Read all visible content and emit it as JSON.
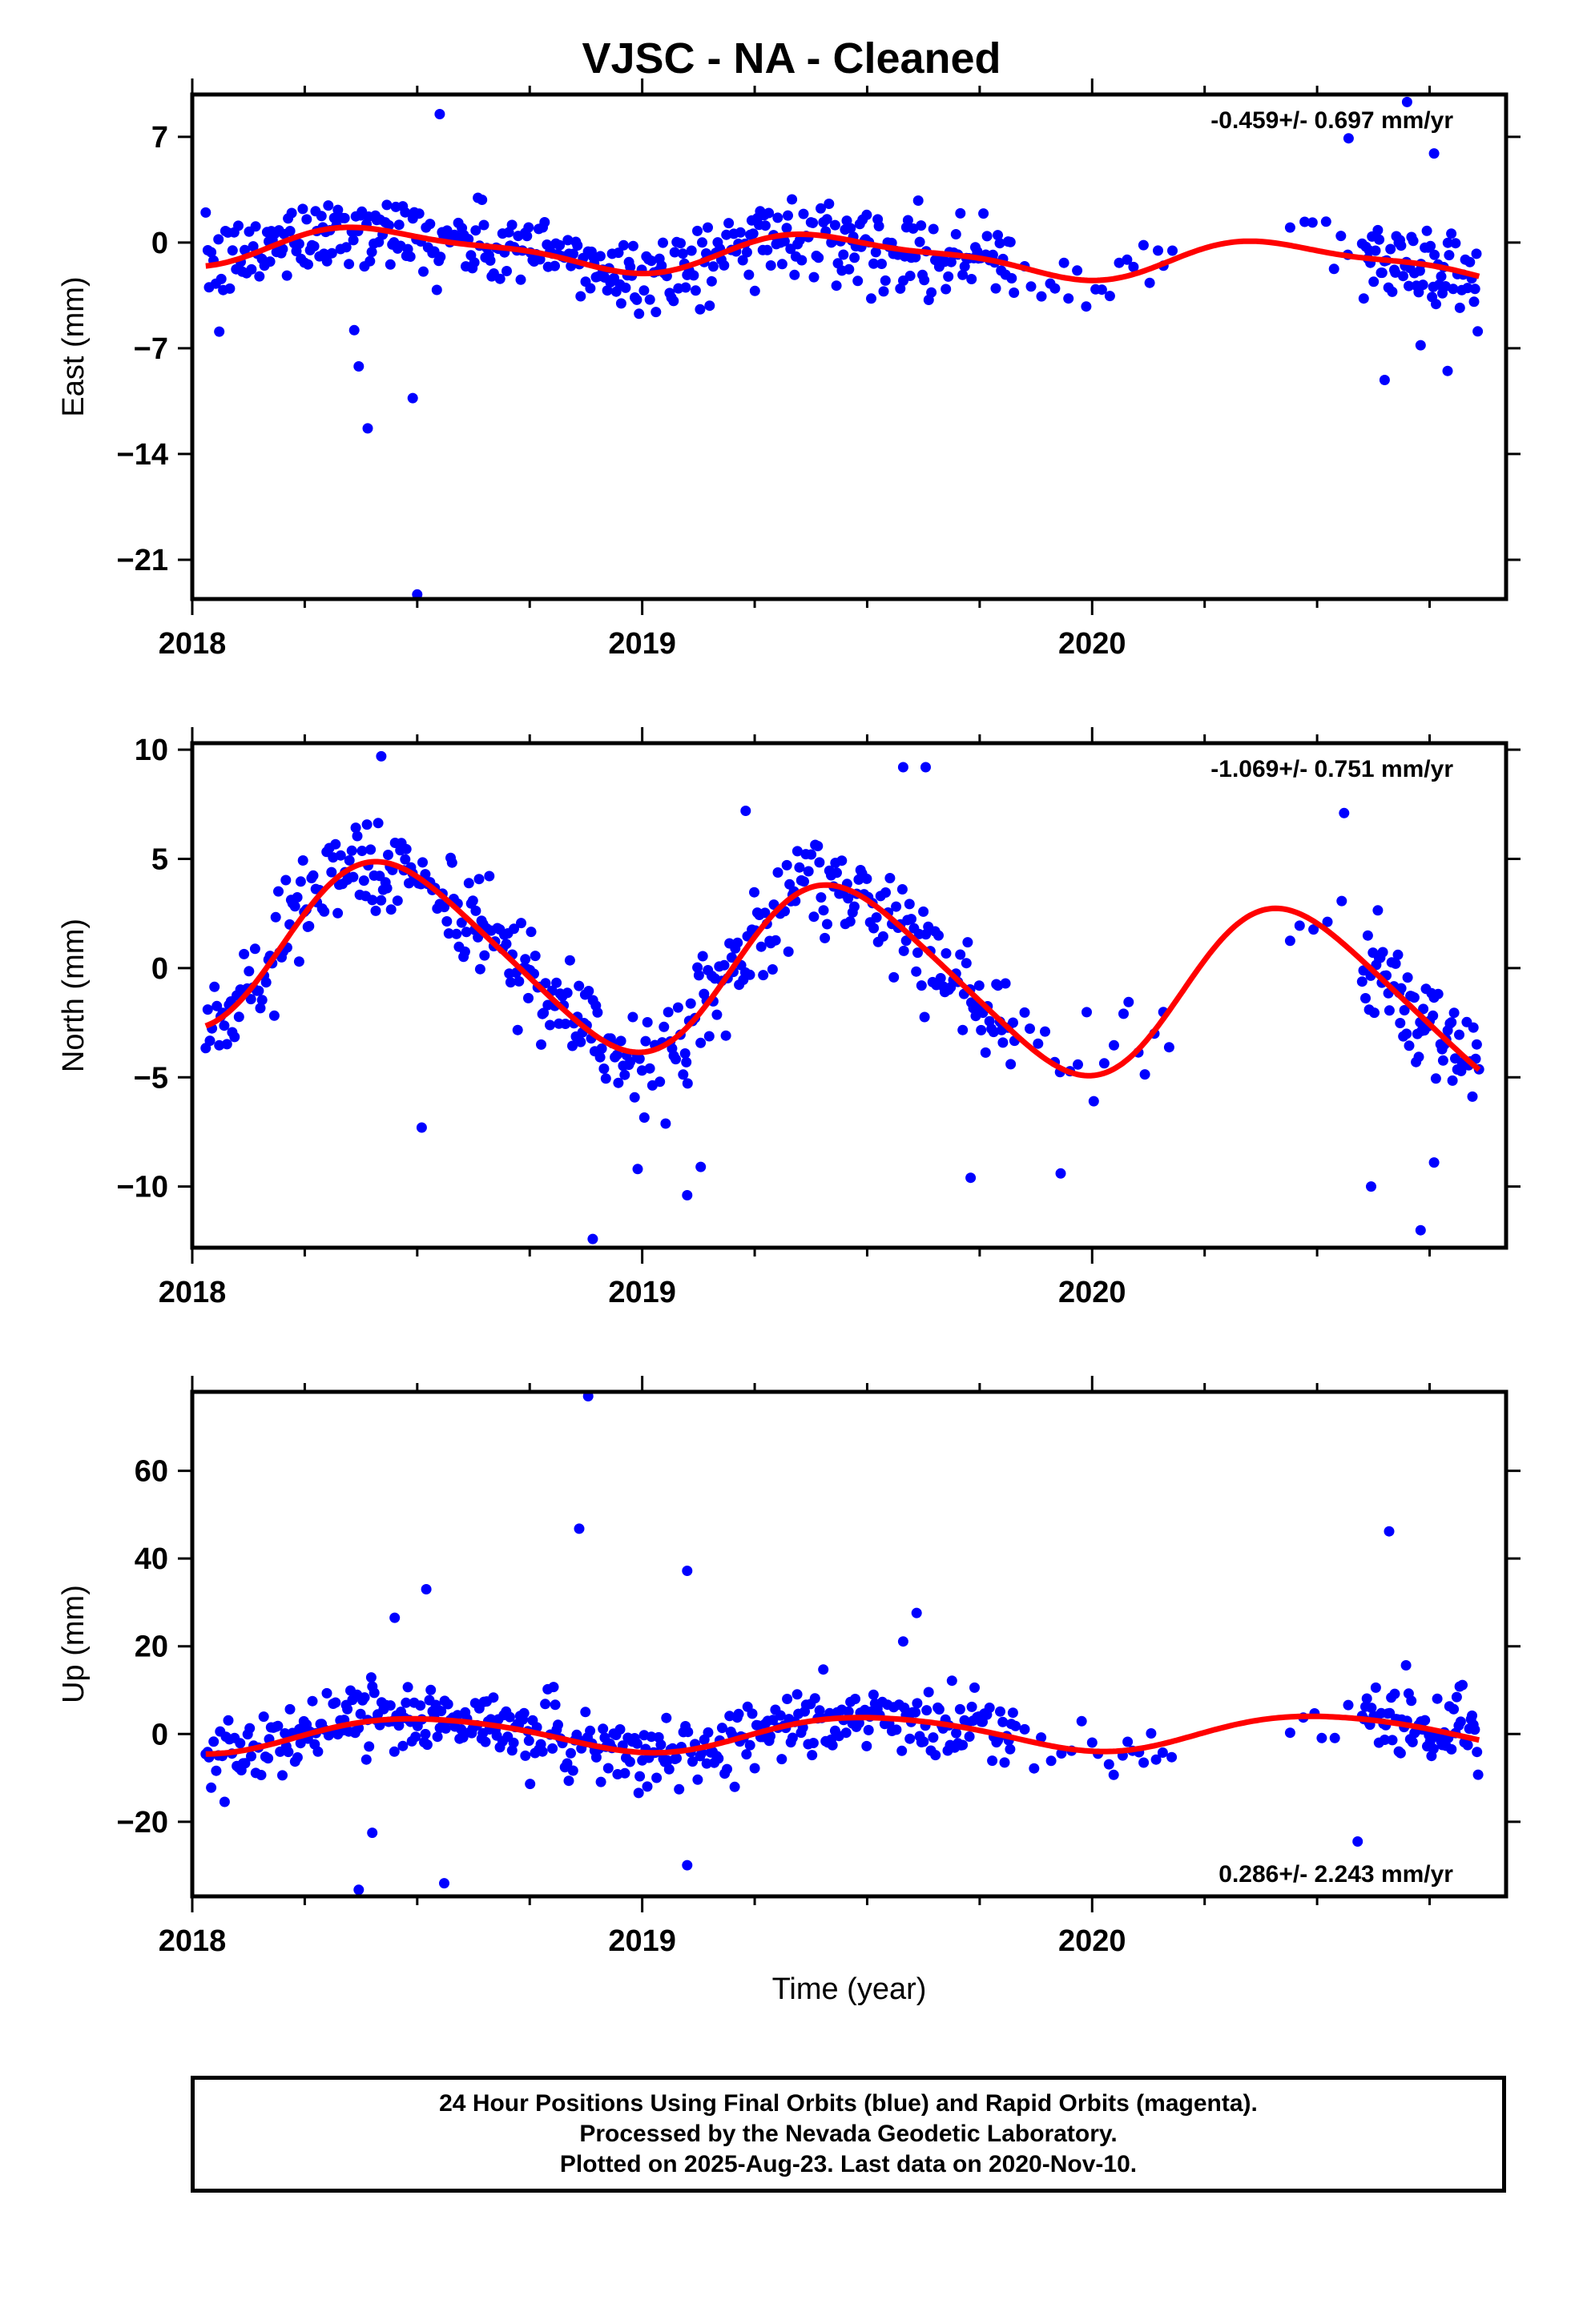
{
  "title": "VJSC  - NA - Cleaned",
  "footer": {
    "line1": "24 Hour Positions Using Final Orbits (blue) and Rapid Orbits (magenta).",
    "line2": "Processed by the Nevada Geodetic Laboratory.",
    "line3": "Plotted on 2025-Aug-23. Last data on 2020-Nov-10."
  },
  "colors": {
    "points": "#0000ff",
    "fit": "#ff0000",
    "frame": "#000000"
  },
  "chart_data": [
    {
      "type": "scatter",
      "name": "east",
      "ylabel": "East (mm)",
      "xlabel": "",
      "xlim": [
        2018.0,
        2020.92
      ],
      "ylim": [
        -23.6,
        9.8
      ],
      "xticks": [
        2018,
        2019,
        2020
      ],
      "yticks": [
        7,
        0,
        -7,
        -14,
        -21
      ],
      "rate": "-0.459+/- 0.697 mm/yr",
      "rate_position": "top-right",
      "model": {
        "offset": -0.6,
        "trend": -0.459,
        "s1": 0.45,
        "c1": -1.1,
        "s2": -0.2,
        "c2": -0.35
      },
      "noise": 1.7,
      "outliers": [
        [
          2018.37,
          -8.2
        ],
        [
          2018.39,
          -12.3
        ],
        [
          2018.49,
          -10.3
        ],
        [
          2018.5,
          -23.3
        ],
        [
          2018.06,
          -5.9
        ],
        [
          2018.36,
          -5.8
        ],
        [
          2020.65,
          -9.1
        ],
        [
          2020.73,
          -6.8
        ],
        [
          2020.79,
          -8.5
        ],
        [
          2018.55,
          8.5
        ],
        [
          2020.7,
          9.3
        ],
        [
          2020.57,
          6.9
        ],
        [
          2020.76,
          5.9
        ]
      ]
    },
    {
      "type": "scatter",
      "name": "north",
      "ylabel": "North (mm)",
      "xlabel": "",
      "xlim": [
        2018.0,
        2020.92
      ],
      "ylim": [
        -12.8,
        10.3
      ],
      "xticks": [
        2018,
        2019,
        2020
      ],
      "yticks": [
        10,
        5,
        0,
        -5,
        -10
      ],
      "rate": "-1.069+/- 0.751 mm/yr",
      "rate_position": "top-right",
      "model": {
        "offset": 0.2,
        "trend": -1.069,
        "s1": 1.2,
        "c1": -3.75,
        "s2": -0.4,
        "c2": -0.3
      },
      "noise": 1.5,
      "outliers": [
        [
          2018.42,
          9.7
        ],
        [
          2018.51,
          -7.3
        ],
        [
          2018.89,
          -12.4
        ],
        [
          2019.1,
          -10.4
        ],
        [
          2018.99,
          -9.2
        ],
        [
          2019.13,
          -9.1
        ],
        [
          2019.73,
          -9.6
        ],
        [
          2019.93,
          -9.4
        ],
        [
          2020.62,
          -10.0
        ],
        [
          2020.73,
          -12.0
        ],
        [
          2020.76,
          -8.9
        ],
        [
          2019.58,
          9.2
        ],
        [
          2019.63,
          9.2
        ],
        [
          2020.56,
          7.1
        ],
        [
          2019.23,
          7.2
        ]
      ]
    },
    {
      "type": "scatter",
      "name": "up",
      "ylabel": "Up (mm)",
      "xlabel": "Time (year)",
      "xlim": [
        2018.0,
        2020.92
      ],
      "ylim": [
        -37.0,
        78.0
      ],
      "xticks": [
        2018,
        2019,
        2020
      ],
      "yticks": [
        60,
        40,
        20,
        0,
        -20
      ],
      "rate": "0.286+/- 2.243 mm/yr",
      "rate_position": "bottom-right",
      "model": {
        "offset": 0.0,
        "trend": 0.286,
        "s1": -0.3,
        "c1": -3.9,
        "s2": -0.3,
        "c2": -0.3
      },
      "noise": 5.5,
      "outliers": [
        [
          2018.88,
          77.0
        ],
        [
          2018.86,
          46.8
        ],
        [
          2020.66,
          46.2
        ],
        [
          2019.1,
          37.2
        ],
        [
          2018.52,
          33.0
        ],
        [
          2018.45,
          26.5
        ],
        [
          2019.61,
          27.6
        ],
        [
          2018.37,
          -35.5
        ],
        [
          2018.56,
          -34.0
        ],
        [
          2019.1,
          -29.9
        ],
        [
          2018.4,
          -22.5
        ],
        [
          2020.59,
          -24.5
        ],
        [
          2019.58,
          21.1
        ]
      ]
    }
  ]
}
